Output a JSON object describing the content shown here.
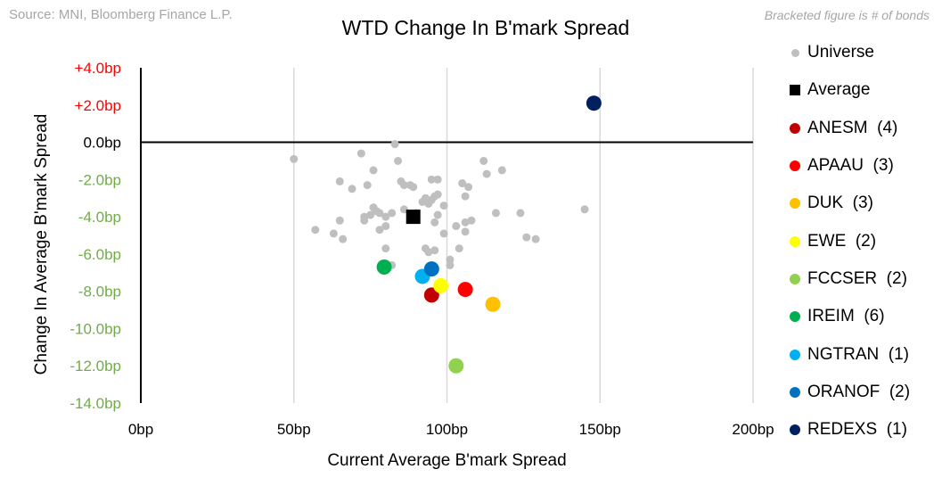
{
  "source": "Source: MNI, Bloomberg Finance L.P.",
  "note": "Bracketed figure is # of bonds",
  "chart_data": {
    "type": "scatter",
    "title": "WTD Change In B'mark Spread",
    "xlabel": "Current Average B'mark Spread",
    "ylabel": "Change In Average B'mark Spread",
    "xlim": [
      0,
      200
    ],
    "ylim": [
      -14,
      4
    ],
    "x_ticks": [
      {
        "value": 0,
        "label": "0bp"
      },
      {
        "value": 50,
        "label": "50bp"
      },
      {
        "value": 100,
        "label": "100bp"
      },
      {
        "value": 150,
        "label": "150bp"
      },
      {
        "value": 200,
        "label": "200bp"
      }
    ],
    "y_ticks": [
      {
        "value": 4,
        "label": "+4.0bp",
        "color": "#ff0000"
      },
      {
        "value": 2,
        "label": "+2.0bp",
        "color": "#ff0000"
      },
      {
        "value": 0,
        "label": "0.0bp",
        "color": "#000000"
      },
      {
        "value": -2,
        "label": "-2.0bp",
        "color": "#70ad47"
      },
      {
        "value": -4,
        "label": "-4.0bp",
        "color": "#70ad47"
      },
      {
        "value": -6,
        "label": "-6.0bp",
        "color": "#70ad47"
      },
      {
        "value": -8,
        "label": "-8.0bp",
        "color": "#70ad47"
      },
      {
        "value": -10,
        "label": "-10.0bp",
        "color": "#70ad47"
      },
      {
        "value": -12,
        "label": "-12.0bp",
        "color": "#70ad47"
      },
      {
        "value": -14,
        "label": "-14.0bp",
        "color": "#70ad47"
      }
    ],
    "grid": {
      "vertical": true,
      "horizontal": false
    },
    "legend_position": "right",
    "series": [
      {
        "name": "Universe",
        "color": "#bfbfbf",
        "marker": "circle-small",
        "points": [
          [
            50,
            -0.9
          ],
          [
            83,
            -0.1
          ],
          [
            72,
            -0.6
          ],
          [
            76,
            -1.5
          ],
          [
            84,
            -1.0
          ],
          [
            65,
            -2.1
          ],
          [
            69,
            -2.5
          ],
          [
            74,
            -2.3
          ],
          [
            85,
            -2.1
          ],
          [
            86,
            -2.3
          ],
          [
            88,
            -2.3
          ],
          [
            89,
            -2.4
          ],
          [
            95,
            -2.0
          ],
          [
            97,
            -2.0
          ],
          [
            93,
            -3.0
          ],
          [
            95,
            -3.1
          ],
          [
            96,
            -2.9
          ],
          [
            97,
            -2.8
          ],
          [
            92,
            -3.2
          ],
          [
            94,
            -3.3
          ],
          [
            99,
            -3.4
          ],
          [
            76,
            -3.5
          ],
          [
            77,
            -3.7
          ],
          [
            78,
            -3.8
          ],
          [
            73,
            -4.0
          ],
          [
            75,
            -3.9
          ],
          [
            80,
            -4.0
          ],
          [
            82,
            -3.8
          ],
          [
            86,
            -3.6
          ],
          [
            90,
            -3.8
          ],
          [
            97,
            -3.9
          ],
          [
            96,
            -4.3
          ],
          [
            73,
            -4.2
          ],
          [
            65,
            -4.2
          ],
          [
            57,
            -4.7
          ],
          [
            63,
            -4.9
          ],
          [
            66,
            -5.2
          ],
          [
            78,
            -4.7
          ],
          [
            80,
            -4.5
          ],
          [
            99,
            -4.9
          ],
          [
            103,
            -4.5
          ],
          [
            106,
            -4.3
          ],
          [
            108,
            -4.2
          ],
          [
            106,
            -4.8
          ],
          [
            112,
            -1.0
          ],
          [
            113,
            -1.7
          ],
          [
            118,
            -1.5
          ],
          [
            105,
            -2.2
          ],
          [
            107,
            -2.4
          ],
          [
            106,
            -2.9
          ],
          [
            116,
            -3.8
          ],
          [
            124,
            -3.8
          ],
          [
            126,
            -5.1
          ],
          [
            129,
            -5.2
          ],
          [
            145,
            -3.6
          ],
          [
            80,
            -5.7
          ],
          [
            82,
            -6.6
          ],
          [
            93,
            -5.7
          ],
          [
            94,
            -5.9
          ],
          [
            96,
            -5.8
          ],
          [
            104,
            -5.7
          ],
          [
            101,
            -6.3
          ],
          [
            101,
            -6.6
          ]
        ]
      },
      {
        "name": "Average",
        "color": "#000000",
        "marker": "square",
        "points": [
          [
            89,
            -4.0
          ]
        ]
      },
      {
        "name": "ANESM  (4)",
        "color": "#c00000",
        "marker": "circle",
        "points": [
          [
            95,
            -8.2
          ]
        ]
      },
      {
        "name": "APAAU  (3)",
        "color": "#ff0000",
        "marker": "circle",
        "points": [
          [
            106,
            -7.9
          ]
        ]
      },
      {
        "name": "DUK  (3)",
        "color": "#ffc000",
        "marker": "circle",
        "points": [
          [
            115,
            -8.7
          ]
        ]
      },
      {
        "name": "EWE  (2)",
        "color": "#ffff00",
        "marker": "circle",
        "points": [
          [
            98,
            -7.7
          ]
        ]
      },
      {
        "name": "FCCSER  (2)",
        "color": "#92d050",
        "marker": "circle",
        "points": [
          [
            103,
            -12.0
          ]
        ]
      },
      {
        "name": "IREIM  (6)",
        "color": "#00b050",
        "marker": "circle",
        "points": [
          [
            79.5,
            -6.7
          ]
        ]
      },
      {
        "name": "NGTRAN  (1)",
        "color": "#00b0f0",
        "marker": "circle",
        "points": [
          [
            92,
            -7.2
          ]
        ]
      },
      {
        "name": "ORANOF  (2)",
        "color": "#0070c0",
        "marker": "circle",
        "points": [
          [
            95,
            -6.8
          ]
        ]
      },
      {
        "name": "REDEXS  (1)",
        "color": "#002060",
        "marker": "circle",
        "points": [
          [
            148,
            2.1
          ]
        ]
      }
    ]
  }
}
